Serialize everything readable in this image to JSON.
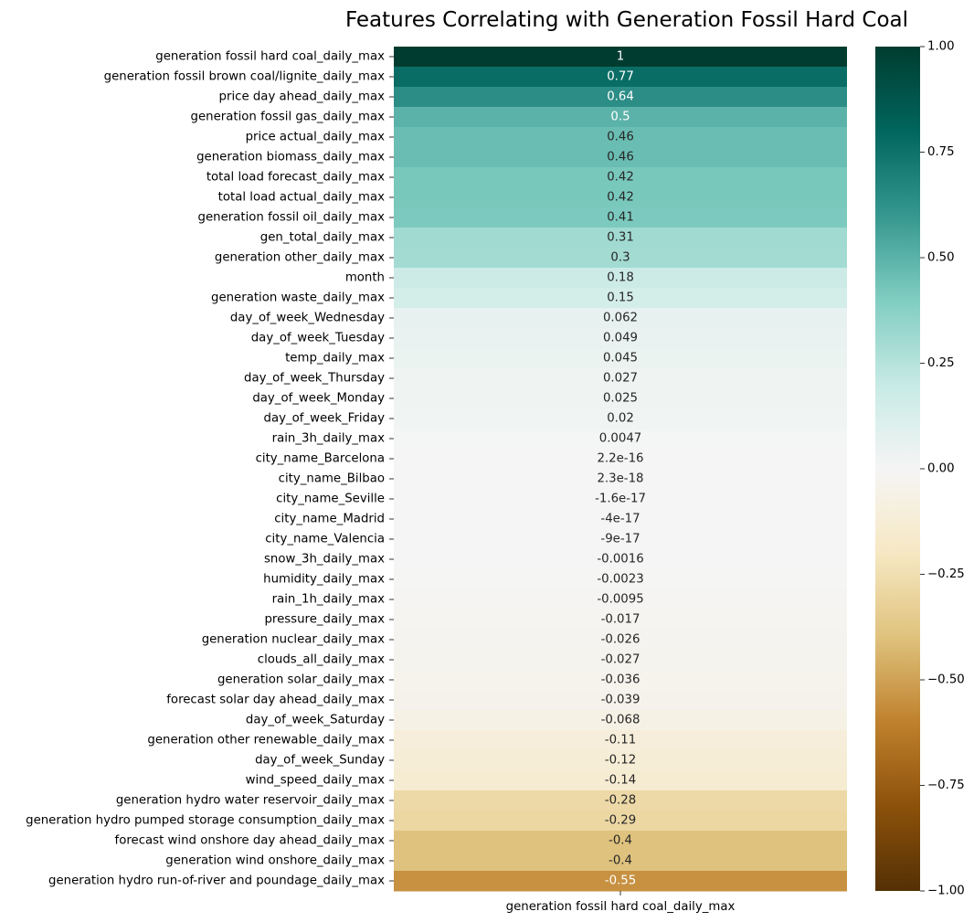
{
  "chart_data": {
    "type": "heatmap",
    "title": "Features Correlating with Generation Fossil Hard Coal",
    "column": "generation fossil hard coal_daily_max",
    "colormap": "BrBG",
    "vmin": -1,
    "vmax": 1,
    "rows": [
      "generation fossil hard coal_daily_max",
      "generation fossil brown coal/lignite_daily_max",
      "price day ahead_daily_max",
      "generation fossil gas_daily_max",
      "price actual_daily_max",
      "generation biomass_daily_max",
      "total load forecast_daily_max",
      "total load actual_daily_max",
      "generation fossil oil_daily_max",
      "gen_total_daily_max",
      "generation other_daily_max",
      "month",
      "generation waste_daily_max",
      "day_of_week_Wednesday",
      "day_of_week_Tuesday",
      "temp_daily_max",
      "day_of_week_Thursday",
      "day_of_week_Monday",
      "day_of_week_Friday",
      "rain_3h_daily_max",
      "city_name_Barcelona",
      "city_name_Bilbao",
      "city_name_Seville",
      "city_name_Madrid",
      "city_name_Valencia",
      "snow_3h_daily_max",
      "humidity_daily_max",
      "rain_1h_daily_max",
      "pressure_daily_max",
      "generation nuclear_daily_max",
      "clouds_all_daily_max",
      "generation solar_daily_max",
      "forecast solar day ahead_daily_max",
      "day_of_week_Saturday",
      "generation other renewable_daily_max",
      "day_of_week_Sunday",
      "wind_speed_daily_max",
      "generation hydro water reservoir_daily_max",
      "generation hydro pumped storage consumption_daily_max",
      "forecast wind onshore day ahead_daily_max",
      "generation wind onshore_daily_max",
      "generation hydro run-of-river and poundage_daily_max"
    ],
    "values": [
      1,
      0.77,
      0.64,
      0.5,
      0.46,
      0.46,
      0.42,
      0.42,
      0.41,
      0.31,
      0.3,
      0.18,
      0.15,
      0.062,
      0.049,
      0.045,
      0.027,
      0.025,
      0.02,
      0.0047,
      2.2e-16,
      2.3e-18,
      -1.6e-17,
      -4e-17,
      -9e-17,
      -0.0016,
      -0.0023,
      -0.0095,
      -0.017,
      -0.026,
      -0.027,
      -0.036,
      -0.039,
      -0.068,
      -0.11,
      -0.12,
      -0.14,
      -0.28,
      -0.29,
      -0.4,
      -0.4,
      -0.55
    ],
    "annotations": [
      "1",
      "0.77",
      "0.64",
      "0.5",
      "0.46",
      "0.46",
      "0.42",
      "0.42",
      "0.41",
      "0.31",
      "0.3",
      "0.18",
      "0.15",
      "0.062",
      "0.049",
      "0.045",
      "0.027",
      "0.025",
      "0.02",
      "0.0047",
      "2.2e-16",
      "2.3e-18",
      "-1.6e-17",
      "-4e-17",
      "-9e-17",
      "-0.0016",
      "-0.0023",
      "-0.0095",
      "-0.017",
      "-0.026",
      "-0.027",
      "-0.036",
      "-0.039",
      "-0.068",
      "-0.11",
      "-0.12",
      "-0.14",
      "-0.28",
      "-0.29",
      "-0.4",
      "-0.4",
      "-0.55"
    ],
    "colorbar_ticks": [
      "1.00",
      "0.75",
      "0.50",
      "0.25",
      "0.00",
      "−0.25",
      "−0.50",
      "−0.75",
      "−1.00"
    ],
    "colorbar_tick_values": [
      1,
      0.75,
      0.5,
      0.25,
      0,
      -0.25,
      -0.5,
      -0.75,
      -1
    ]
  }
}
